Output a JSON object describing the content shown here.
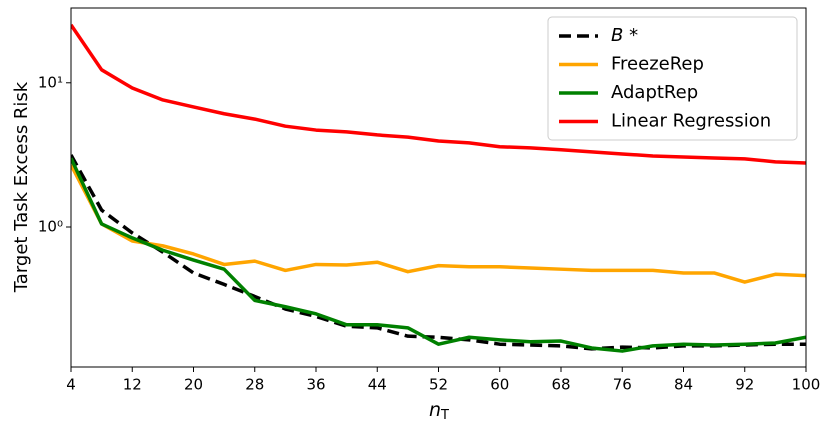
{
  "chart_data": {
    "type": "line",
    "xlabel": "nT",
    "ylabel": "Target Task Excess Risk",
    "x": [
      4,
      8,
      12,
      16,
      20,
      24,
      28,
      32,
      36,
      40,
      44,
      48,
      52,
      56,
      60,
      64,
      68,
      72,
      76,
      80,
      84,
      88,
      92,
      96,
      100
    ],
    "xlim": [
      4,
      100
    ],
    "xticks": [
      4,
      12,
      20,
      28,
      36,
      44,
      52,
      60,
      68,
      76,
      84,
      92,
      100
    ],
    "ylim": [
      0.107,
      33
    ],
    "yticks": [
      {
        "value": 1,
        "label": "10⁰"
      },
      {
        "value": 10,
        "label": "10¹"
      }
    ],
    "yscale": "log",
    "legend": "upper right",
    "series": [
      {
        "name": "B *",
        "color": "#000000",
        "linestyle": "dashed",
        "values": [
          3.16,
          1.31,
          0.91,
          0.67,
          0.48,
          0.4,
          0.33,
          0.27,
          0.24,
          0.205,
          0.2,
          0.175,
          0.172,
          0.165,
          0.154,
          0.152,
          0.15,
          0.143,
          0.147,
          0.145,
          0.15,
          0.15,
          0.152,
          0.154,
          0.154
        ]
      },
      {
        "name": "FreezeRep",
        "color": "#ffa500",
        "linestyle": "solid",
        "values": [
          2.7,
          1.05,
          0.8,
          0.74,
          0.65,
          0.55,
          0.58,
          0.5,
          0.55,
          0.545,
          0.57,
          0.49,
          0.54,
          0.53,
          0.53,
          0.52,
          0.51,
          0.5,
          0.5,
          0.5,
          0.48,
          0.48,
          0.415,
          0.47,
          0.46
        ]
      },
      {
        "name": "AdaptRep",
        "color": "#008000",
        "linestyle": "solid",
        "values": [
          3.0,
          1.05,
          0.84,
          0.69,
          0.59,
          0.51,
          0.31,
          0.28,
          0.25,
          0.21,
          0.21,
          0.2,
          0.154,
          0.172,
          0.165,
          0.16,
          0.162,
          0.145,
          0.138,
          0.15,
          0.154,
          0.152,
          0.154,
          0.157,
          0.172
        ]
      },
      {
        "name": "Linear Regression",
        "color": "#ff0000",
        "linestyle": "solid",
        "values": [
          25.2,
          12.3,
          9.2,
          7.6,
          6.8,
          6.1,
          5.6,
          5.0,
          4.7,
          4.57,
          4.35,
          4.2,
          3.95,
          3.83,
          3.6,
          3.54,
          3.43,
          3.32,
          3.21,
          3.11,
          3.06,
          3.01,
          2.97,
          2.83,
          2.78
        ]
      }
    ]
  }
}
